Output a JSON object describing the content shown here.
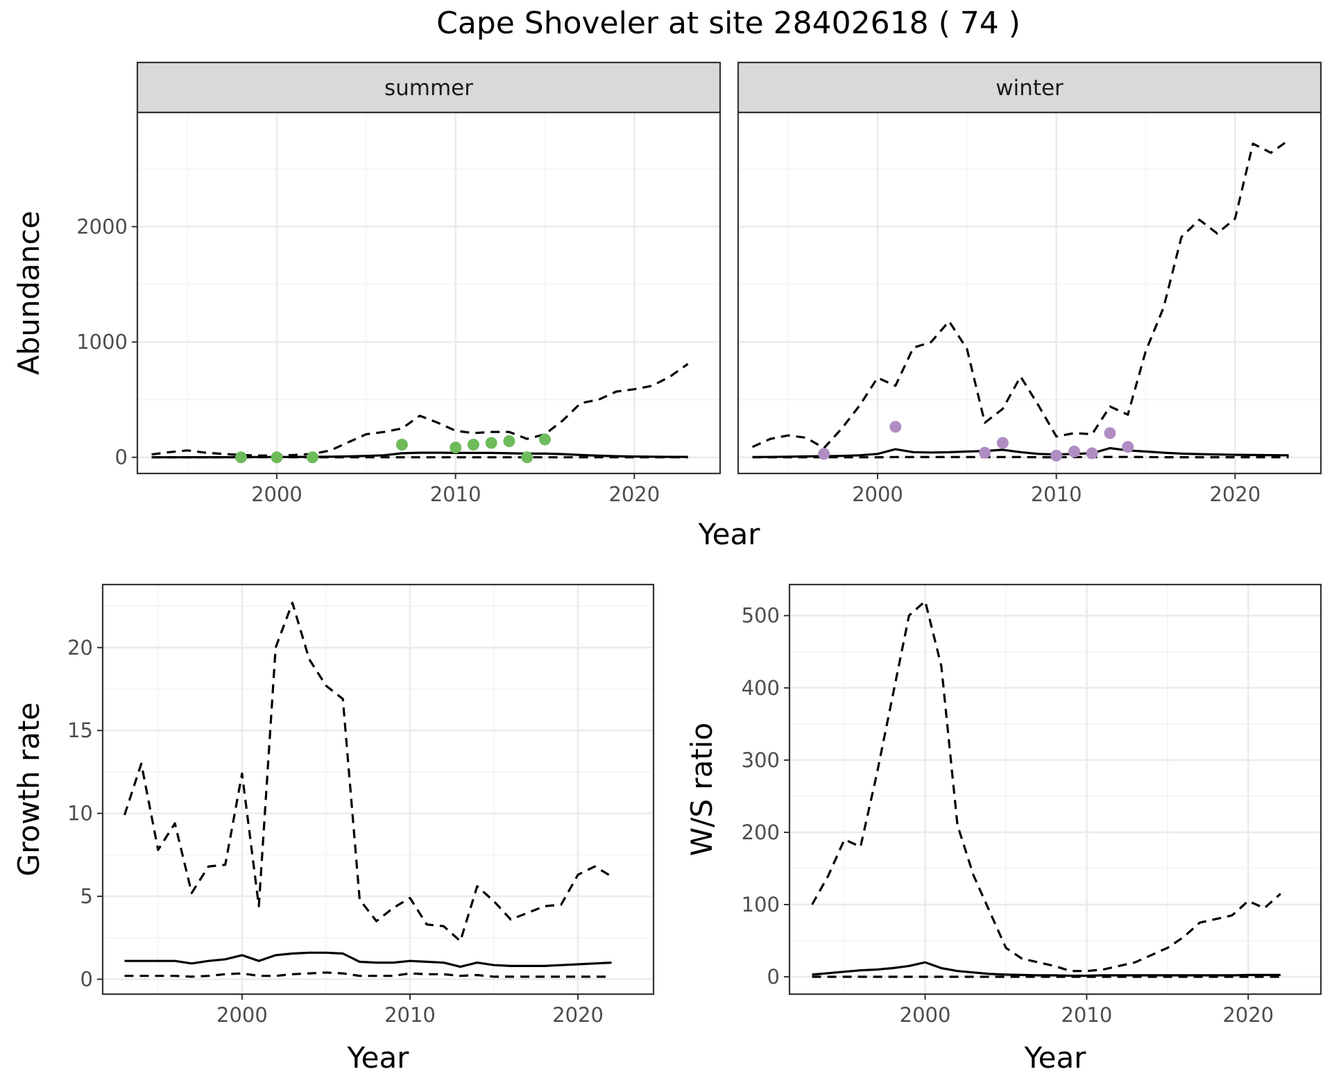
{
  "figure_title": "Cape Shoveler at site 28402618 ( 74 )",
  "chart_data": [
    {
      "id": "abundance",
      "type": "line",
      "ylabel": "Abundance",
      "xlabel": "Year",
      "xlim": [
        1992.2,
        2024.8
      ],
      "ylim": [
        -140,
        2990
      ],
      "xticks": [
        2000,
        2010,
        2020
      ],
      "yticks": [
        0,
        1000,
        2000
      ],
      "facets": [
        {
          "id": "summer",
          "label": "summer",
          "point_color": "#6dbb5b",
          "x": [
            1993,
            1994,
            1995,
            1996,
            1997,
            1998,
            1999,
            2000,
            2001,
            2002,
            2003,
            2004,
            2005,
            2006,
            2007,
            2008,
            2009,
            2010,
            2011,
            2012,
            2013,
            2014,
            2015,
            2016,
            2017,
            2018,
            2019,
            2020,
            2021,
            2022,
            2023
          ],
          "series": [
            {
              "role": "median",
              "style": "solid",
              "values": [
                0,
                0,
                1,
                1,
                1,
                2,
                2,
                2,
                3,
                4,
                5,
                8,
                12,
                18,
                35,
                40,
                40,
                38,
                38,
                38,
                35,
                32,
                32,
                28,
                20,
                14,
                10,
                7,
                5,
                4,
                4
              ]
            },
            {
              "role": "lower",
              "style": "dashed",
              "values": [
                0,
                0,
                0,
                0,
                0,
                0,
                0,
                0,
                0,
                0,
                0,
                0,
                0,
                0,
                0,
                0,
                0,
                0,
                0,
                0,
                0,
                0,
                0,
                0,
                0,
                0,
                0,
                0,
                0,
                0,
                0
              ]
            },
            {
              "role": "upper",
              "style": "dashed",
              "values": [
                25,
                45,
                60,
                40,
                30,
                20,
                15,
                15,
                20,
                30,
                60,
                130,
                200,
                220,
                250,
                360,
                300,
                230,
                210,
                220,
                220,
                160,
                200,
                320,
                470,
                500,
                570,
                590,
                620,
                700,
                810
              ]
            }
          ],
          "points": [
            {
              "x": 1998,
              "y": 0
            },
            {
              "x": 2000,
              "y": 0
            },
            {
              "x": 2002,
              "y": 0
            },
            {
              "x": 2007,
              "y": 110
            },
            {
              "x": 2010,
              "y": 85
            },
            {
              "x": 2011,
              "y": 110
            },
            {
              "x": 2012,
              "y": 125
            },
            {
              "x": 2013,
              "y": 140
            },
            {
              "x": 2014,
              "y": 0
            },
            {
              "x": 2015,
              "y": 155
            }
          ]
        },
        {
          "id": "winter",
          "label": "winter",
          "point_color": "#af8dc3",
          "x": [
            1993,
            1994,
            1995,
            1996,
            1997,
            1998,
            1999,
            2000,
            2001,
            2002,
            2003,
            2004,
            2005,
            2006,
            2007,
            2008,
            2009,
            2010,
            2011,
            2012,
            2013,
            2014,
            2015,
            2016,
            2017,
            2018,
            2019,
            2020,
            2021,
            2022,
            2023
          ],
          "series": [
            {
              "role": "median",
              "style": "solid",
              "values": [
                2,
                3,
                5,
                8,
                10,
                12,
                18,
                30,
                70,
                45,
                42,
                44,
                50,
                55,
                65,
                45,
                30,
                25,
                30,
                35,
                80,
                60,
                50,
                40,
                32,
                28,
                25,
                22,
                20,
                19,
                18
              ]
            },
            {
              "role": "lower",
              "style": "dashed",
              "values": [
                0,
                0,
                0,
                0,
                0,
                0,
                0,
                0,
                2,
                2,
                2,
                2,
                2,
                2,
                2,
                2,
                1,
                1,
                2,
                2,
                3,
                3,
                2,
                1,
                1,
                1,
                1,
                1,
                1,
                1,
                1
              ]
            },
            {
              "role": "upper",
              "style": "dashed",
              "values": [
                90,
                160,
                190,
                170,
                80,
                250,
                450,
                690,
                620,
                950,
                1000,
                1180,
                940,
                300,
                420,
                700,
                450,
                180,
                210,
                200,
                440,
                370,
                920,
                1300,
                1910,
                2060,
                1940,
                2070,
                2720,
                2640,
                2750
              ]
            }
          ],
          "points": [
            {
              "x": 1997,
              "y": 30
            },
            {
              "x": 2001,
              "y": 265
            },
            {
              "x": 2006,
              "y": 40
            },
            {
              "x": 2007,
              "y": 125
            },
            {
              "x": 2010,
              "y": 15
            },
            {
              "x": 2011,
              "y": 50
            },
            {
              "x": 2012,
              "y": 35
            },
            {
              "x": 2013,
              "y": 210
            },
            {
              "x": 2014,
              "y": 90
            }
          ]
        }
      ]
    },
    {
      "id": "growth",
      "type": "line",
      "ylabel": "Growth rate",
      "xlabel": "Year",
      "xlim": [
        1991.7,
        2024.5
      ],
      "ylim": [
        -0.9,
        23.8
      ],
      "xticks": [
        2000,
        2010,
        2020
      ],
      "yticks": [
        0,
        5,
        10,
        15,
        20
      ],
      "x": [
        1993,
        1994,
        1995,
        1996,
        1997,
        1998,
        1999,
        2000,
        2001,
        2002,
        2003,
        2004,
        2005,
        2006,
        2007,
        2008,
        2009,
        2010,
        2011,
        2012,
        2013,
        2014,
        2015,
        2016,
        2017,
        2018,
        2019,
        2020,
        2021,
        2022
      ],
      "series": [
        {
          "role": "median",
          "style": "solid",
          "values": [
            1.1,
            1.1,
            1.1,
            1.1,
            0.95,
            1.1,
            1.2,
            1.45,
            1.1,
            1.45,
            1.55,
            1.6,
            1.6,
            1.55,
            1.05,
            1.0,
            1.0,
            1.1,
            1.05,
            1.0,
            0.75,
            1.0,
            0.85,
            0.8,
            0.8,
            0.8,
            0.85,
            0.9,
            0.95,
            1.0
          ]
        },
        {
          "role": "lower",
          "style": "dashed",
          "values": [
            0.2,
            0.2,
            0.2,
            0.2,
            0.15,
            0.2,
            0.3,
            0.35,
            0.2,
            0.2,
            0.3,
            0.35,
            0.4,
            0.35,
            0.2,
            0.2,
            0.2,
            0.35,
            0.3,
            0.3,
            0.2,
            0.25,
            0.15,
            0.15,
            0.15,
            0.15,
            0.15,
            0.15,
            0.15,
            0.15
          ]
        },
        {
          "role": "upper",
          "style": "dashed",
          "values": [
            9.9,
            13.0,
            7.8,
            9.4,
            5.2,
            6.8,
            6.9,
            12.4,
            4.4,
            20.0,
            22.7,
            19.3,
            17.7,
            16.9,
            4.8,
            3.5,
            4.3,
            4.9,
            3.3,
            3.2,
            2.3,
            5.6,
            4.7,
            3.6,
            4.0,
            4.4,
            4.5,
            6.3,
            6.8,
            6.2
          ]
        }
      ]
    },
    {
      "id": "ws_ratio",
      "type": "line",
      "ylabel": "W/S ratio",
      "xlabel": "Year",
      "xlim": [
        1991.6,
        2024.5
      ],
      "ylim": [
        -24,
        543
      ],
      "xticks": [
        2000,
        2010,
        2020
      ],
      "yticks": [
        0,
        100,
        200,
        300,
        400,
        500
      ],
      "x": [
        1993,
        1994,
        1995,
        1996,
        1997,
        1998,
        1999,
        2000,
        2001,
        2002,
        2003,
        2004,
        2005,
        2006,
        2007,
        2008,
        2009,
        2010,
        2011,
        2012,
        2013,
        2014,
        2015,
        2016,
        2017,
        2018,
        2019,
        2020,
        2021,
        2022
      ],
      "series": [
        {
          "role": "median",
          "style": "solid",
          "values": [
            3,
            5,
            7,
            9,
            10,
            12,
            15,
            20,
            12,
            8,
            6,
            4,
            3,
            2.5,
            2,
            2,
            1.5,
            1.5,
            2,
            2,
            2,
            2,
            2,
            2,
            2,
            2,
            2,
            2.5,
            2.5,
            2.5
          ]
        },
        {
          "role": "lower",
          "style": "dashed",
          "values": [
            0,
            0,
            0,
            0,
            0,
            0,
            0,
            0,
            0,
            0,
            0,
            0,
            0,
            0,
            0,
            0,
            0,
            0,
            0,
            0,
            0,
            0,
            0,
            0,
            0,
            0,
            0,
            0,
            0,
            0
          ]
        },
        {
          "role": "upper",
          "style": "dashed",
          "values": [
            100,
            140,
            190,
            180,
            280,
            390,
            500,
            520,
            430,
            210,
            140,
            90,
            40,
            25,
            20,
            15,
            8,
            8,
            10,
            15,
            20,
            30,
            40,
            55,
            75,
            80,
            85,
            105,
            95,
            115
          ]
        }
      ]
    }
  ]
}
